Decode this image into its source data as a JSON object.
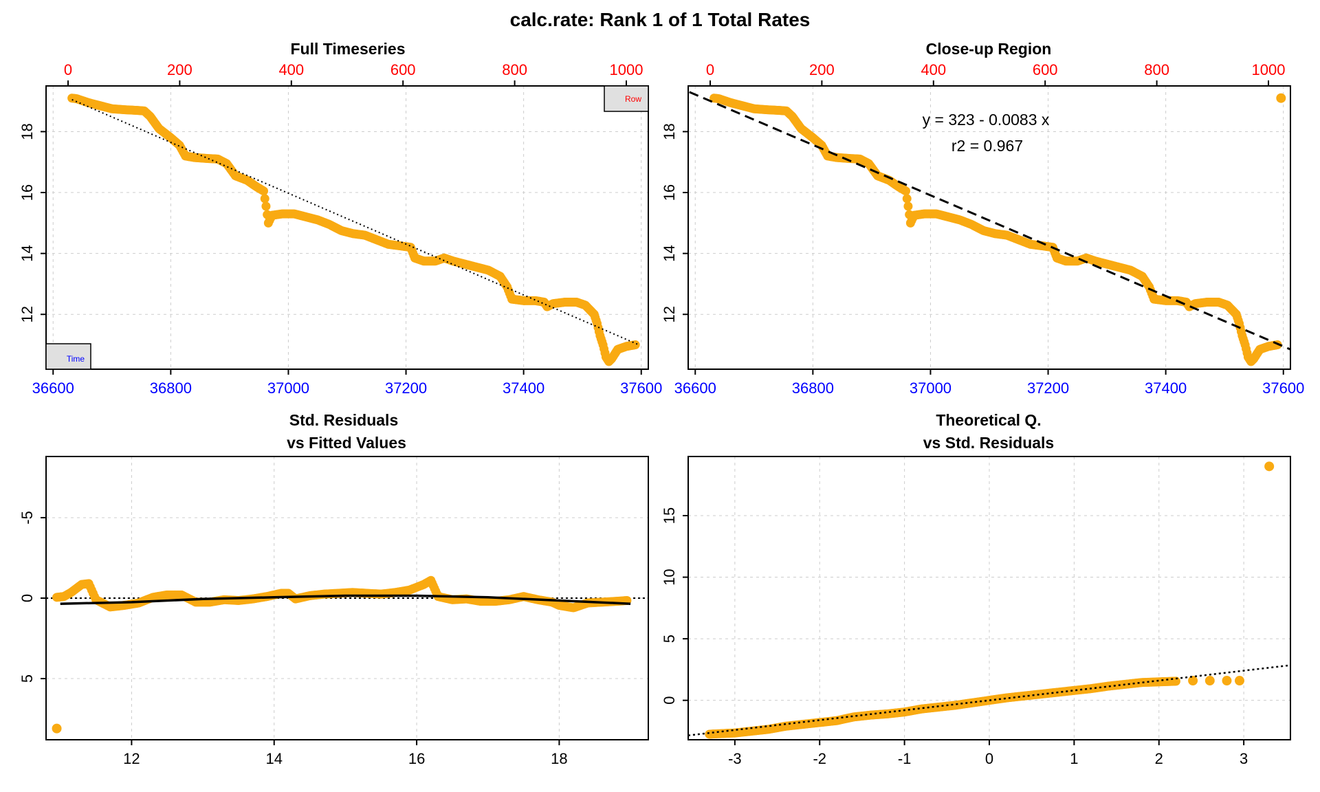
{
  "figure": {
    "title": "calc.rate: Rank 1 of 1 Total Rates"
  },
  "colors": {
    "points": "#F9AA12",
    "time_axis": "#0000FF",
    "row_axis": "#FF0000",
    "legend_bg": "#E0E0E0"
  },
  "chart_data": [
    {
      "id": "full",
      "type": "scatter",
      "title": "Full Timeseries",
      "x_ticks": [
        "36600",
        "36800",
        "37000",
        "37200",
        "37400",
        "37600"
      ],
      "top_ticks": [
        "0",
        "200",
        "400",
        "600",
        "800",
        "1000"
      ],
      "y_ticks": [
        "12",
        "14",
        "16",
        "18"
      ],
      "xlim": [
        36588,
        37612
      ],
      "ylim": [
        10.2,
        19.5
      ],
      "top_xlim": [
        0,
        1000
      ],
      "legend": {
        "time": "Time",
        "row": "Row"
      },
      "trend": {
        "from": [
          36632,
          19.05
        ],
        "to": [
          37596,
          11.0
        ],
        "style": "dotted"
      },
      "points": [
        [
          36632,
          19.1
        ],
        [
          36640,
          19.08
        ],
        [
          36660,
          18.95
        ],
        [
          36680,
          18.85
        ],
        [
          36700,
          18.75
        ],
        [
          36720,
          18.72
        ],
        [
          36740,
          18.7
        ],
        [
          36755,
          18.68
        ],
        [
          36765,
          18.5
        ],
        [
          36780,
          18.1
        ],
        [
          36800,
          17.8
        ],
        [
          36815,
          17.55
        ],
        [
          36825,
          17.2
        ],
        [
          36840,
          17.15
        ],
        [
          36860,
          17.12
        ],
        [
          36880,
          17.1
        ],
        [
          36895,
          16.95
        ],
        [
          36910,
          16.55
        ],
        [
          36930,
          16.4
        ],
        [
          36945,
          16.2
        ],
        [
          36958,
          16.05
        ],
        [
          36962,
          15.55
        ],
        [
          36966,
          15.0
        ],
        [
          36972,
          15.25
        ],
        [
          36990,
          15.3
        ],
        [
          37010,
          15.3
        ],
        [
          37030,
          15.2
        ],
        [
          37050,
          15.1
        ],
        [
          37070,
          14.95
        ],
        [
          37090,
          14.75
        ],
        [
          37110,
          14.65
        ],
        [
          37130,
          14.6
        ],
        [
          37150,
          14.45
        ],
        [
          37170,
          14.3
        ],
        [
          37190,
          14.25
        ],
        [
          37208,
          14.2
        ],
        [
          37215,
          13.85
        ],
        [
          37230,
          13.75
        ],
        [
          37250,
          13.75
        ],
        [
          37265,
          13.85
        ],
        [
          37280,
          13.75
        ],
        [
          37300,
          13.65
        ],
        [
          37320,
          13.55
        ],
        [
          37340,
          13.45
        ],
        [
          37360,
          13.25
        ],
        [
          37372,
          12.9
        ],
        [
          37380,
          12.5
        ],
        [
          37400,
          12.45
        ],
        [
          37420,
          12.45
        ],
        [
          37435,
          12.4
        ],
        [
          37440,
          12.25
        ],
        [
          37450,
          12.35
        ],
        [
          37470,
          12.4
        ],
        [
          37490,
          12.4
        ],
        [
          37505,
          12.3
        ],
        [
          37520,
          12.0
        ],
        [
          37525,
          11.7
        ],
        [
          37530,
          11.3
        ],
        [
          37535,
          11.0
        ],
        [
          37540,
          10.6
        ],
        [
          37545,
          10.45
        ],
        [
          37550,
          10.55
        ],
        [
          37560,
          10.85
        ],
        [
          37575,
          10.95
        ],
        [
          37590,
          11.0
        ]
      ]
    },
    {
      "id": "closeup",
      "type": "scatter",
      "title": "Close-up Region",
      "x_ticks": [
        "36600",
        "36800",
        "37000",
        "37200",
        "37400",
        "37600"
      ],
      "top_ticks": [
        "0",
        "200",
        "400",
        "600",
        "800",
        "1000"
      ],
      "y_ticks": [
        "12",
        "14",
        "16",
        "18"
      ],
      "xlim": [
        36588,
        37612
      ],
      "ylim": [
        10.2,
        19.5
      ],
      "top_xlim": [
        0,
        1000
      ],
      "annotation": {
        "equation": "y = 323 - 0.0083 x",
        "r2": "r2 = 0.967"
      },
      "trend": {
        "from": [
          36590,
          19.3
        ],
        "to": [
          37612,
          10.85
        ],
        "style": "dashed"
      },
      "outlier": [
        37596,
        19.1
      ]
    },
    {
      "id": "resid",
      "type": "scatter",
      "title": "Std. Residuals",
      "subtitle": "vs Fitted Values",
      "x_ticks": [
        "12",
        "14",
        "16",
        "18"
      ],
      "y_ticks": [
        "-5",
        "0",
        "5"
      ],
      "xlim": [
        10.8,
        19.25
      ],
      "ylim_top_to_bottom": [
        -8.8,
        8.8
      ],
      "points": [
        [
          10.95,
          -0.05
        ],
        [
          11.05,
          -0.1
        ],
        [
          11.15,
          -0.35
        ],
        [
          11.3,
          -0.85
        ],
        [
          11.4,
          -0.9
        ],
        [
          11.5,
          0.1
        ],
        [
          11.7,
          0.55
        ],
        [
          11.9,
          0.45
        ],
        [
          12.1,
          0.3
        ],
        [
          12.3,
          -0.05
        ],
        [
          12.5,
          -0.2
        ],
        [
          12.7,
          -0.2
        ],
        [
          12.9,
          0.25
        ],
        [
          13.1,
          0.25
        ],
        [
          13.3,
          0.1
        ],
        [
          13.5,
          0.15
        ],
        [
          13.7,
          0.05
        ],
        [
          13.9,
          -0.1
        ],
        [
          14.1,
          -0.3
        ],
        [
          14.2,
          -0.3
        ],
        [
          14.3,
          0.05
        ],
        [
          14.5,
          -0.15
        ],
        [
          14.7,
          -0.25
        ],
        [
          14.9,
          -0.3
        ],
        [
          15.1,
          -0.35
        ],
        [
          15.3,
          -0.3
        ],
        [
          15.5,
          -0.25
        ],
        [
          15.7,
          -0.35
        ],
        [
          15.9,
          -0.5
        ],
        [
          16.1,
          -0.85
        ],
        [
          16.2,
          -1.1
        ],
        [
          16.3,
          -0.1
        ],
        [
          16.5,
          0.1
        ],
        [
          16.7,
          0.05
        ],
        [
          16.9,
          0.2
        ],
        [
          17.1,
          0.2
        ],
        [
          17.3,
          0.1
        ],
        [
          17.5,
          -0.1
        ],
        [
          17.7,
          0.1
        ],
        [
          17.9,
          0.25
        ],
        [
          18.0,
          0.45
        ],
        [
          18.2,
          0.6
        ],
        [
          18.4,
          0.3
        ],
        [
          18.6,
          0.25
        ],
        [
          18.8,
          0.2
        ],
        [
          18.95,
          0.15
        ]
      ],
      "outlier": [
        10.95,
        8.1
      ],
      "smooth": [
        [
          11.0,
          0.35
        ],
        [
          12.0,
          0.25
        ],
        [
          13.0,
          0.05
        ],
        [
          14.0,
          -0.05
        ],
        [
          15.0,
          -0.15
        ],
        [
          16.0,
          -0.15
        ],
        [
          17.0,
          -0.05
        ],
        [
          18.0,
          0.15
        ],
        [
          19.0,
          0.35
        ]
      ],
      "zero_line": 0
    },
    {
      "id": "qq",
      "type": "scatter",
      "title": "Theoretical Q.",
      "subtitle": "vs Std. Residuals",
      "x_ticks": [
        "-3",
        "-2",
        "-1",
        "0",
        "1",
        "2",
        "3"
      ],
      "y_ticks": [
        "0",
        "5",
        "10",
        "15"
      ],
      "xlim": [
        -3.55,
        3.55
      ],
      "ylim": [
        -3.2,
        19.8
      ],
      "points": [
        [
          -3.3,
          -2.75
        ],
        [
          -3.0,
          -2.65
        ],
        [
          -2.8,
          -2.5
        ],
        [
          -2.6,
          -2.35
        ],
        [
          -2.4,
          -2.1
        ],
        [
          -2.2,
          -1.95
        ],
        [
          -2.0,
          -1.8
        ],
        [
          -1.8,
          -1.65
        ],
        [
          -1.6,
          -1.35
        ],
        [
          -1.4,
          -1.2
        ],
        [
          -1.2,
          -1.1
        ],
        [
          -1.0,
          -0.95
        ],
        [
          -0.8,
          -0.7
        ],
        [
          -0.6,
          -0.55
        ],
        [
          -0.4,
          -0.4
        ],
        [
          -0.2,
          -0.2
        ],
        [
          0.0,
          0.0
        ],
        [
          0.2,
          0.2
        ],
        [
          0.4,
          0.35
        ],
        [
          0.6,
          0.5
        ],
        [
          0.8,
          0.65
        ],
        [
          1.0,
          0.8
        ],
        [
          1.2,
          0.95
        ],
        [
          1.4,
          1.15
        ],
        [
          1.6,
          1.3
        ],
        [
          1.8,
          1.45
        ],
        [
          2.0,
          1.5
        ],
        [
          2.2,
          1.55
        ],
        [
          2.4,
          1.6
        ],
        [
          2.6,
          1.6
        ],
        [
          2.8,
          1.6
        ],
        [
          2.95,
          1.6
        ]
      ],
      "outlier": [
        3.3,
        19.0
      ],
      "trend": {
        "from": [
          -3.55,
          -2.85
        ],
        "to": [
          3.55,
          2.85
        ],
        "style": "dotted"
      }
    }
  ]
}
